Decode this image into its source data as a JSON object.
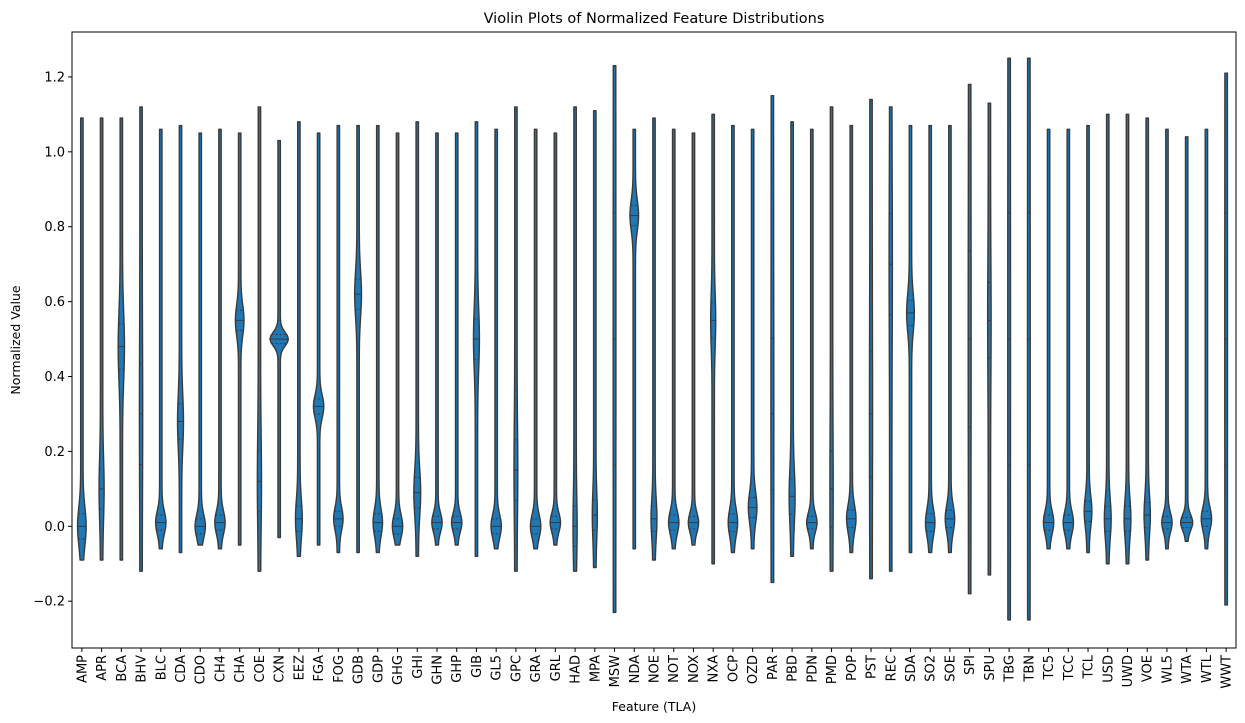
{
  "chart_data": {
    "type": "violin",
    "title": "Violin Plots of Normalized Feature Distributions",
    "xlabel": "Feature (TLA)",
    "ylabel": "Normalized Value",
    "ylim": [
      -0.325,
      1.32
    ],
    "yticks": [
      -0.2,
      0.0,
      0.2,
      0.4,
      0.6,
      0.8,
      1.0,
      1.2
    ],
    "ytick_labels": [
      "−0.2",
      "0.0",
      "0.2",
      "0.4",
      "0.6",
      "0.8",
      "1.0",
      "1.2"
    ],
    "grid": false,
    "legend": "none",
    "color": "#1f77b4",
    "edge_color": "#3a3a3a",
    "inner": "quartile",
    "categories": [
      "AMP",
      "APR",
      "BCA",
      "BHV",
      "BLC",
      "CDA",
      "CDO",
      "CH4",
      "CHA",
      "COE",
      "CXN",
      "EEZ",
      "FGA",
      "FOG",
      "GDB",
      "GDP",
      "GHG",
      "GHI",
      "GHN",
      "GHP",
      "GIB",
      "GL5",
      "GPC",
      "GRA",
      "GRL",
      "HAD",
      "MPA",
      "MSW",
      "NDA",
      "NOE",
      "NOT",
      "NOX",
      "NXA",
      "OCP",
      "OZD",
      "PAR",
      "PBD",
      "PDN",
      "PMD",
      "POP",
      "PST",
      "REC",
      "SDA",
      "SO2",
      "SOE",
      "SPI",
      "SPU",
      "TBG",
      "TBN",
      "TC5",
      "TCC",
      "TCL",
      "USD",
      "UWD",
      "VOE",
      "WL5",
      "WTA",
      "WTL",
      "WWT"
    ],
    "violins": [
      {
        "feature": "AMP",
        "min": -0.09,
        "max": 1.09,
        "center": 0.0,
        "spread": 0.05,
        "width": 0.35
      },
      {
        "feature": "APR",
        "min": -0.09,
        "max": 1.09,
        "center": 0.1,
        "spread": 0.08,
        "width": 0.15
      },
      {
        "feature": "BCA",
        "min": -0.09,
        "max": 1.09,
        "center": 0.48,
        "spread": 0.09,
        "width": 0.22
      },
      {
        "feature": "BHV",
        "min": -0.12,
        "max": 1.12,
        "center": 0.3,
        "spread": 0.2,
        "width": 0.05
      },
      {
        "feature": "BLC",
        "min": -0.06,
        "max": 1.06,
        "center": 0.01,
        "spread": 0.03,
        "width": 0.45
      },
      {
        "feature": "CDA",
        "min": -0.07,
        "max": 1.07,
        "center": 0.28,
        "spread": 0.07,
        "width": 0.2
      },
      {
        "feature": "CDO",
        "min": -0.05,
        "max": 1.05,
        "center": 0.0,
        "spread": 0.03,
        "width": 0.45
      },
      {
        "feature": "CH4",
        "min": -0.06,
        "max": 1.06,
        "center": 0.01,
        "spread": 0.03,
        "width": 0.45
      },
      {
        "feature": "CHA",
        "min": -0.05,
        "max": 1.05,
        "center": 0.55,
        "spread": 0.04,
        "width": 0.35
      },
      {
        "feature": "COE",
        "min": -0.12,
        "max": 1.12,
        "center": 0.12,
        "spread": 0.12,
        "width": 0.1
      },
      {
        "feature": "CXN",
        "min": -0.03,
        "max": 1.03,
        "center": 0.5,
        "spread": 0.018,
        "width": 0.9
      },
      {
        "feature": "EEZ",
        "min": -0.08,
        "max": 1.08,
        "center": 0.02,
        "spread": 0.05,
        "width": 0.25
      },
      {
        "feature": "FGA",
        "min": -0.05,
        "max": 1.05,
        "center": 0.32,
        "spread": 0.03,
        "width": 0.45
      },
      {
        "feature": "FOG",
        "min": -0.07,
        "max": 1.07,
        "center": 0.02,
        "spread": 0.03,
        "width": 0.4
      },
      {
        "feature": "GDB",
        "min": -0.07,
        "max": 1.07,
        "center": 0.62,
        "spread": 0.06,
        "width": 0.25
      },
      {
        "feature": "GDP",
        "min": -0.07,
        "max": 1.07,
        "center": 0.01,
        "spread": 0.035,
        "width": 0.4
      },
      {
        "feature": "GHG",
        "min": -0.05,
        "max": 1.05,
        "center": 0.0,
        "spread": 0.03,
        "width": 0.45
      },
      {
        "feature": "GHI",
        "min": -0.08,
        "max": 1.08,
        "center": 0.09,
        "spread": 0.06,
        "width": 0.25
      },
      {
        "feature": "GHN",
        "min": -0.05,
        "max": 1.05,
        "center": 0.01,
        "spread": 0.025,
        "width": 0.45
      },
      {
        "feature": "GHP",
        "min": -0.05,
        "max": 1.05,
        "center": 0.01,
        "spread": 0.025,
        "width": 0.45
      },
      {
        "feature": "GIB",
        "min": -0.08,
        "max": 1.08,
        "center": 0.5,
        "spread": 0.08,
        "width": 0.2
      },
      {
        "feature": "GL5",
        "min": -0.06,
        "max": 1.06,
        "center": 0.0,
        "spread": 0.03,
        "width": 0.45
      },
      {
        "feature": "GPC",
        "min": -0.12,
        "max": 1.12,
        "center": 0.15,
        "spread": 0.12,
        "width": 0.08
      },
      {
        "feature": "GRA",
        "min": -0.06,
        "max": 1.06,
        "center": 0.0,
        "spread": 0.03,
        "width": 0.45
      },
      {
        "feature": "GRL",
        "min": -0.05,
        "max": 1.05,
        "center": 0.01,
        "spread": 0.025,
        "width": 0.45
      },
      {
        "feature": "HAD",
        "min": -0.12,
        "max": 1.12,
        "center": 0.0,
        "spread": 0.08,
        "width": 0.1
      },
      {
        "feature": "MPA",
        "min": -0.11,
        "max": 1.11,
        "center": 0.03,
        "spread": 0.06,
        "width": 0.15
      },
      {
        "feature": "MSW",
        "min": -0.23,
        "max": 1.23,
        "center": 0.5,
        "spread": 0.5,
        "width": 0.02
      },
      {
        "feature": "NDA",
        "min": -0.06,
        "max": 1.06,
        "center": 0.83,
        "spread": 0.04,
        "width": 0.35
      },
      {
        "feature": "NOE",
        "min": -0.09,
        "max": 1.09,
        "center": 0.02,
        "spread": 0.05,
        "width": 0.2
      },
      {
        "feature": "NOT",
        "min": -0.06,
        "max": 1.06,
        "center": 0.01,
        "spread": 0.03,
        "width": 0.45
      },
      {
        "feature": "NOX",
        "min": -0.05,
        "max": 1.05,
        "center": 0.01,
        "spread": 0.025,
        "width": 0.45
      },
      {
        "feature": "NXA",
        "min": -0.1,
        "max": 1.1,
        "center": 0.55,
        "spread": 0.07,
        "width": 0.15
      },
      {
        "feature": "OCP",
        "min": -0.07,
        "max": 1.07,
        "center": 0.01,
        "spread": 0.035,
        "width": 0.4
      },
      {
        "feature": "OZD",
        "min": -0.06,
        "max": 1.06,
        "center": 0.05,
        "spread": 0.04,
        "width": 0.35
      },
      {
        "feature": "PAR",
        "min": -0.15,
        "max": 1.15,
        "center": 0.3,
        "spread": 0.3,
        "width": 0.03
      },
      {
        "feature": "PBD",
        "min": -0.08,
        "max": 1.08,
        "center": 0.08,
        "spread": 0.07,
        "width": 0.2
      },
      {
        "feature": "PDN",
        "min": -0.06,
        "max": 1.06,
        "center": 0.01,
        "spread": 0.025,
        "width": 0.45
      },
      {
        "feature": "PMD",
        "min": -0.12,
        "max": 1.12,
        "center": 0.1,
        "spread": 0.15,
        "width": 0.05
      },
      {
        "feature": "POP",
        "min": -0.07,
        "max": 1.07,
        "center": 0.02,
        "spread": 0.035,
        "width": 0.4
      },
      {
        "feature": "PST",
        "min": -0.14,
        "max": 1.14,
        "center": 0.3,
        "spread": 0.25,
        "width": 0.04
      },
      {
        "feature": "REC",
        "min": -0.12,
        "max": 1.12,
        "center": 0.7,
        "spread": 0.2,
        "width": 0.05
      },
      {
        "feature": "SDA",
        "min": -0.07,
        "max": 1.07,
        "center": 0.57,
        "spread": 0.05,
        "width": 0.3
      },
      {
        "feature": "SO2",
        "min": -0.07,
        "max": 1.07,
        "center": 0.01,
        "spread": 0.035,
        "width": 0.4
      },
      {
        "feature": "SOE",
        "min": -0.07,
        "max": 1.07,
        "center": 0.02,
        "spread": 0.035,
        "width": 0.4
      },
      {
        "feature": "SPI",
        "min": -0.18,
        "max": 1.18,
        "center": 0.5,
        "spread": 0.35,
        "width": 0.03
      },
      {
        "feature": "SPU",
        "min": -0.13,
        "max": 1.13,
        "center": 0.55,
        "spread": 0.15,
        "width": 0.06
      },
      {
        "feature": "TBG",
        "min": -0.25,
        "max": 1.25,
        "center": 0.5,
        "spread": 0.5,
        "width": 0.02
      },
      {
        "feature": "TBN",
        "min": -0.25,
        "max": 1.25,
        "center": 0.5,
        "spread": 0.5,
        "width": 0.02
      },
      {
        "feature": "TC5",
        "min": -0.06,
        "max": 1.06,
        "center": 0.01,
        "spread": 0.03,
        "width": 0.45
      },
      {
        "feature": "TCC",
        "min": -0.06,
        "max": 1.06,
        "center": 0.01,
        "spread": 0.03,
        "width": 0.45
      },
      {
        "feature": "TCL",
        "min": -0.07,
        "max": 1.07,
        "center": 0.04,
        "spread": 0.04,
        "width": 0.3
      },
      {
        "feature": "USD",
        "min": -0.1,
        "max": 1.1,
        "center": 0.02,
        "spread": 0.05,
        "width": 0.25
      },
      {
        "feature": "UWD",
        "min": -0.1,
        "max": 1.1,
        "center": 0.02,
        "spread": 0.05,
        "width": 0.25
      },
      {
        "feature": "VOE",
        "min": -0.09,
        "max": 1.09,
        "center": 0.03,
        "spread": 0.05,
        "width": 0.22
      },
      {
        "feature": "WL5",
        "min": -0.06,
        "max": 1.06,
        "center": 0.01,
        "spread": 0.025,
        "width": 0.45
      },
      {
        "feature": "WTA",
        "min": -0.04,
        "max": 1.04,
        "center": 0.01,
        "spread": 0.02,
        "width": 0.55
      },
      {
        "feature": "WTL",
        "min": -0.06,
        "max": 1.06,
        "center": 0.02,
        "spread": 0.03,
        "width": 0.45
      },
      {
        "feature": "WWT",
        "min": -0.21,
        "max": 1.21,
        "center": 0.5,
        "spread": 0.5,
        "width": 0.02
      }
    ]
  }
}
